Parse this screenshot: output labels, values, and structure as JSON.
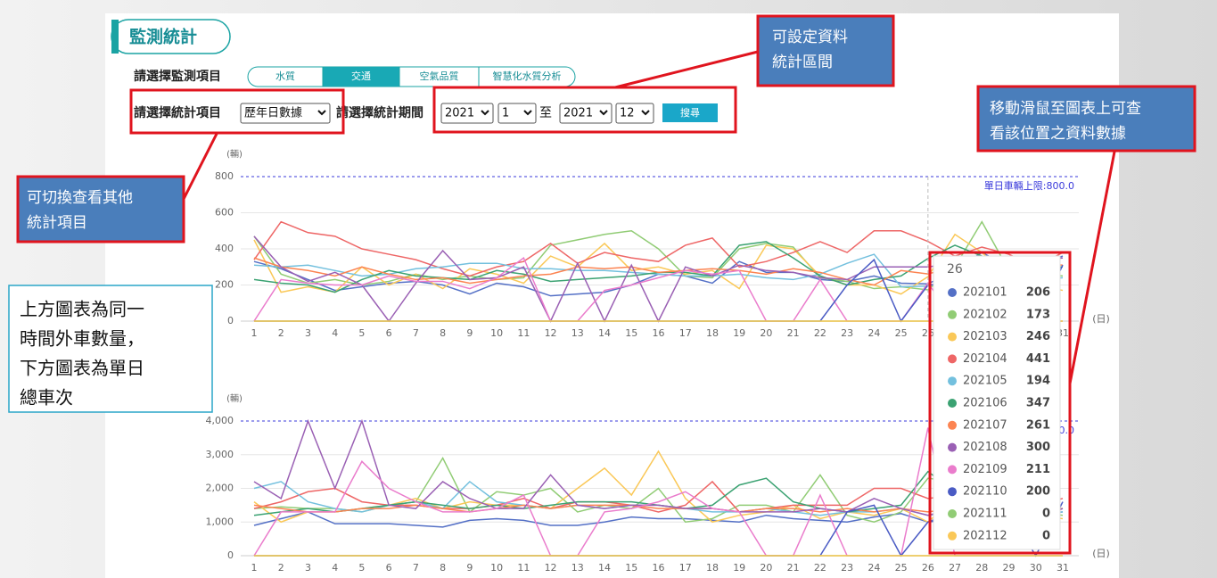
{
  "panel_title": "監測統計",
  "form": {
    "item_label": "請選擇監測項目",
    "tabs": [
      "水質",
      "交通",
      "空氣品質",
      "智慧化水質分析"
    ],
    "active_tab": "交通",
    "stat_label": "請選擇統計項目",
    "stat_select": "歷年日數據",
    "period_label": "請選擇統計期間",
    "from_year": "2021",
    "from_month": "1",
    "to_text": "至",
    "to_year": "2021",
    "to_month": "12",
    "search": "搜尋"
  },
  "annotations": [
    {
      "lines": [
        "可設定資料",
        "統計區間"
      ]
    },
    {
      "lines": [
        "移動滑鼠至圖表上可查",
        "看該位置之資料數據"
      ]
    },
    {
      "lines": [
        "可切換查看其他",
        "統計項目"
      ]
    },
    {
      "lines": [
        "上方圖表為同一",
        "時間外車數量，",
        "下方圖表為單日",
        "總車次"
      ]
    }
  ],
  "tooltip": {
    "title": "26",
    "rows": [
      {
        "name": "202101",
        "value": 206
      },
      {
        "name": "202102",
        "value": 173
      },
      {
        "name": "202103",
        "value": 246
      },
      {
        "name": "202104",
        "value": 441
      },
      {
        "name": "202105",
        "value": 194
      },
      {
        "name": "202106",
        "value": 347
      },
      {
        "name": "202107",
        "value": 261
      },
      {
        "name": "202108",
        "value": 300
      },
      {
        "name": "202109",
        "value": 211
      },
      {
        "name": "202110",
        "value": 200
      },
      {
        "name": "202111",
        "value": 0
      },
      {
        "name": "202112",
        "value": 0
      }
    ]
  },
  "chart_data": [
    {
      "type": "line",
      "y_unit": "(輛)",
      "x_unit": "(日)",
      "ylim": [
        0,
        800
      ],
      "yticks": [
        0,
        200,
        400,
        600,
        800
      ],
      "grid": true,
      "limit": {
        "value": 800,
        "label": "單日車輛上限:800.0"
      },
      "categories": [
        "1",
        "2",
        "3",
        "4",
        "5",
        "6",
        "7",
        "8",
        "9",
        "10",
        "11",
        "12",
        "13",
        "14",
        "15",
        "16",
        "17",
        "18",
        "19",
        "20",
        "21",
        "22",
        "23",
        "24",
        "25",
        "26",
        "27",
        "28",
        "29",
        "30",
        "31"
      ],
      "series": [
        {
          "name": "202101",
          "color": "#5470c6",
          "values": [
            330,
            290,
            230,
            170,
            190,
            210,
            220,
            200,
            150,
            210,
            190,
            140,
            150,
            160,
            200,
            260,
            250,
            210,
            330,
            270,
            270,
            230,
            220,
            250,
            210,
            206,
            280,
            380,
            300,
            310,
            360
          ]
        },
        {
          "name": "202102",
          "color": "#91cc75",
          "values": [
            470,
            260,
            210,
            230,
            200,
            220,
            260,
            230,
            250,
            230,
            240,
            420,
            450,
            480,
            500,
            400,
            250,
            240,
            400,
            430,
            410,
            240,
            220,
            180,
            190,
            173,
            300,
            550,
            280,
            260,
            250
          ]
        },
        {
          "name": "202103",
          "color": "#fac858",
          "values": [
            450,
            160,
            190,
            160,
            300,
            200,
            260,
            180,
            290,
            260,
            210,
            360,
            300,
            430,
            280,
            300,
            260,
            280,
            180,
            420,
            400,
            250,
            200,
            200,
            150,
            246,
            480,
            380,
            250,
            200,
            170
          ]
        },
        {
          "name": "202104",
          "color": "#ee6666",
          "values": [
            340,
            550,
            490,
            470,
            400,
            370,
            340,
            290,
            250,
            300,
            330,
            430,
            320,
            380,
            350,
            330,
            420,
            460,
            300,
            330,
            380,
            440,
            380,
            500,
            500,
            441,
            360,
            410,
            370,
            300,
            380
          ]
        },
        {
          "name": "202105",
          "color": "#73c0de",
          "values": [
            310,
            300,
            310,
            280,
            250,
            260,
            290,
            300,
            320,
            320,
            290,
            290,
            280,
            280,
            270,
            260,
            250,
            250,
            260,
            240,
            230,
            260,
            320,
            370,
            190,
            194,
            230,
            280,
            250,
            230,
            240
          ]
        },
        {
          "name": "202106",
          "color": "#3ba272",
          "values": [
            230,
            210,
            200,
            160,
            230,
            280,
            250,
            240,
            230,
            280,
            260,
            220,
            230,
            240,
            250,
            270,
            270,
            250,
            420,
            440,
            350,
            250,
            200,
            230,
            250,
            347,
            420,
            360,
            330,
            300,
            300
          ]
        },
        {
          "name": "202107",
          "color": "#fc8452",
          "values": [
            350,
            300,
            280,
            250,
            300,
            260,
            230,
            240,
            210,
            230,
            250,
            260,
            300,
            290,
            300,
            270,
            280,
            290,
            280,
            260,
            290,
            270,
            230,
            200,
            280,
            261,
            300,
            350,
            330,
            320,
            310
          ]
        },
        {
          "name": "202108",
          "color": "#9a60b4",
          "values": [
            470,
            300,
            220,
            270,
            200,
            0,
            210,
            390,
            230,
            240,
            300,
            0,
            320,
            0,
            310,
            0,
            300,
            250,
            310,
            280,
            270,
            240,
            230,
            300,
            300,
            300,
            320,
            300,
            350,
            330,
            350
          ]
        },
        {
          "name": "202109",
          "color": "#ea7ccc",
          "values": [
            0,
            230,
            210,
            200,
            200,
            250,
            220,
            220,
            180,
            240,
            350,
            0,
            0,
            170,
            200,
            240,
            280,
            260,
            280,
            0,
            0,
            230,
            0,
            0,
            0,
            211,
            0,
            0,
            0,
            0,
            0
          ]
        },
        {
          "name": "202110",
          "color": "#4a5bc4",
          "values": [
            0,
            0,
            0,
            0,
            0,
            0,
            0,
            0,
            0,
            0,
            0,
            0,
            0,
            0,
            0,
            0,
            0,
            0,
            0,
            0,
            0,
            0,
            200,
            340,
            0,
            200,
            210,
            220,
            230,
            0,
            310
          ]
        },
        {
          "name": "202111",
          "color": "#91cc75",
          "values": [
            0,
            0,
            0,
            0,
            0,
            0,
            0,
            0,
            0,
            0,
            0,
            0,
            0,
            0,
            0,
            0,
            0,
            0,
            0,
            0,
            0,
            0,
            0,
            0,
            0,
            0,
            0,
            0,
            0,
            0,
            0
          ]
        },
        {
          "name": "202112",
          "color": "#fac858",
          "values": [
            0,
            0,
            0,
            0,
            0,
            0,
            0,
            0,
            0,
            0,
            0,
            0,
            0,
            0,
            0,
            0,
            0,
            0,
            0,
            0,
            0,
            0,
            0,
            0,
            0,
            0,
            0,
            0,
            0,
            0,
            0
          ]
        }
      ]
    },
    {
      "type": "line",
      "y_unit": "(輛)",
      "x_unit": "(日)",
      "ylim": [
        0,
        4000
      ],
      "yticks": [
        0,
        {
          "value": 1000,
          "label": "1,000"
        },
        {
          "value": 2000,
          "label": "2,000"
        },
        {
          "value": 3000,
          "label": "3,000"
        },
        {
          "value": 4000,
          "label": "4,000"
        }
      ],
      "grid": true,
      "limit": {
        "value": 4000,
        "label": "單日車輛上限:4000.0"
      },
      "categories": [
        "1",
        "2",
        "3",
        "4",
        "5",
        "6",
        "7",
        "8",
        "9",
        "10",
        "11",
        "12",
        "13",
        "14",
        "15",
        "16",
        "17",
        "18",
        "19",
        "20",
        "21",
        "22",
        "23",
        "24",
        "25",
        "26",
        "27",
        "28",
        "29",
        "30",
        "31"
      ],
      "series": [
        {
          "name": "202101",
          "color": "#5470c6",
          "values": [
            900,
            1100,
            1300,
            950,
            950,
            950,
            900,
            850,
            1050,
            1100,
            1050,
            900,
            900,
            1000,
            1150,
            1100,
            1100,
            1050,
            1000,
            1200,
            1100,
            1050,
            1000,
            1150,
            1250,
            1000,
            1300,
            1200,
            1100,
            1200,
            1300
          ]
        },
        {
          "name": "202102",
          "color": "#91cc75",
          "values": [
            1400,
            1450,
            1400,
            1400,
            1300,
            1500,
            1600,
            2900,
            1300,
            1900,
            1800,
            2000,
            1300,
            1500,
            1400,
            2000,
            1000,
            1100,
            1500,
            1500,
            1300,
            2400,
            1200,
            1000,
            1300,
            2300,
            2200,
            1600,
            1400,
            1300,
            1200
          ]
        },
        {
          "name": "202103",
          "color": "#fac858",
          "values": [
            1600,
            1000,
            1300,
            1300,
            1400,
            1500,
            1700,
            1400,
            1600,
            1500,
            1500,
            1400,
            2000,
            2600,
            1800,
            3100,
            1700,
            1000,
            1200,
            1300,
            1500,
            1100,
            1300,
            1200,
            1400,
            1000,
            1700,
            1300,
            1200,
            1200,
            1100
          ]
        },
        {
          "name": "202104",
          "color": "#ee6666",
          "values": [
            1400,
            1600,
            1900,
            2000,
            1600,
            1500,
            1500,
            1400,
            1400,
            1500,
            1700,
            1400,
            1600,
            1600,
            1500,
            1300,
            1500,
            2200,
            1300,
            1400,
            1500,
            1500,
            1500,
            2000,
            2000,
            1700,
            1800,
            1700,
            1600,
            1500,
            1700
          ]
        },
        {
          "name": "202105",
          "color": "#73c0de",
          "values": [
            2000,
            2200,
            1600,
            1400,
            1300,
            1500,
            1600,
            1400,
            2200,
            1600,
            1500,
            1400,
            1500,
            1400,
            1500,
            1500,
            1400,
            1300,
            1300,
            1400,
            1300,
            1200,
            1300,
            1300,
            1400,
            1200,
            1300,
            1500,
            1300,
            1200,
            1300
          ]
        },
        {
          "name": "202106",
          "color": "#3ba272",
          "values": [
            1200,
            1300,
            1400,
            1300,
            1400,
            1500,
            1600,
            1500,
            1400,
            1500,
            1400,
            1500,
            1600,
            1600,
            1600,
            1500,
            1400,
            1500,
            2100,
            2300,
            1600,
            1400,
            1300,
            1400,
            1500,
            2500,
            1900,
            1700,
            1500,
            1400,
            1400
          ]
        },
        {
          "name": "202107",
          "color": "#fc8452",
          "values": [
            1500,
            1400,
            1300,
            1300,
            1400,
            1400,
            1500,
            1400,
            1300,
            1400,
            1500,
            1400,
            1500,
            1500,
            1500,
            1400,
            1400,
            1400,
            1300,
            1400,
            1400,
            1300,
            1400,
            1300,
            1400,
            1300,
            1400,
            1500,
            1400,
            1300,
            1400
          ]
        },
        {
          "name": "202108",
          "color": "#9a60b4",
          "values": [
            2200,
            1700,
            4000,
            2000,
            4000,
            1500,
            1400,
            2200,
            1700,
            1400,
            1400,
            2400,
            1500,
            1400,
            1500,
            1500,
            1400,
            1400,
            1300,
            1300,
            1300,
            1400,
            1300,
            1700,
            1400,
            1200,
            1400,
            1300,
            1200,
            1100,
            1400
          ]
        },
        {
          "name": "202109",
          "color": "#ea7ccc",
          "values": [
            0,
            1300,
            1300,
            1300,
            2800,
            2000,
            1600,
            1300,
            1300,
            1400,
            1800,
            0,
            0,
            1300,
            1400,
            1600,
            1900,
            1400,
            1300,
            0,
            0,
            1800,
            0,
            0,
            0,
            3800,
            0,
            0,
            0,
            0,
            0
          ]
        },
        {
          "name": "202110",
          "color": "#4a5bc4",
          "values": [
            0,
            0,
            0,
            0,
            0,
            0,
            0,
            0,
            0,
            0,
            0,
            0,
            0,
            0,
            0,
            0,
            0,
            0,
            0,
            0,
            0,
            0,
            1300,
            1500,
            0,
            1000,
            1100,
            1200,
            1300,
            0,
            1600
          ]
        },
        {
          "name": "202111",
          "color": "#91cc75",
          "values": [
            0,
            0,
            0,
            0,
            0,
            0,
            0,
            0,
            0,
            0,
            0,
            0,
            0,
            0,
            0,
            0,
            0,
            0,
            0,
            0,
            0,
            0,
            0,
            0,
            0,
            0,
            0,
            0,
            0,
            0,
            0
          ]
        },
        {
          "name": "202112",
          "color": "#fac858",
          "values": [
            0,
            0,
            0,
            0,
            0,
            0,
            0,
            0,
            0,
            0,
            0,
            0,
            0,
            0,
            0,
            0,
            0,
            0,
            0,
            0,
            0,
            0,
            0,
            0,
            0,
            0,
            0,
            0,
            0,
            0,
            0
          ]
        }
      ]
    }
  ]
}
